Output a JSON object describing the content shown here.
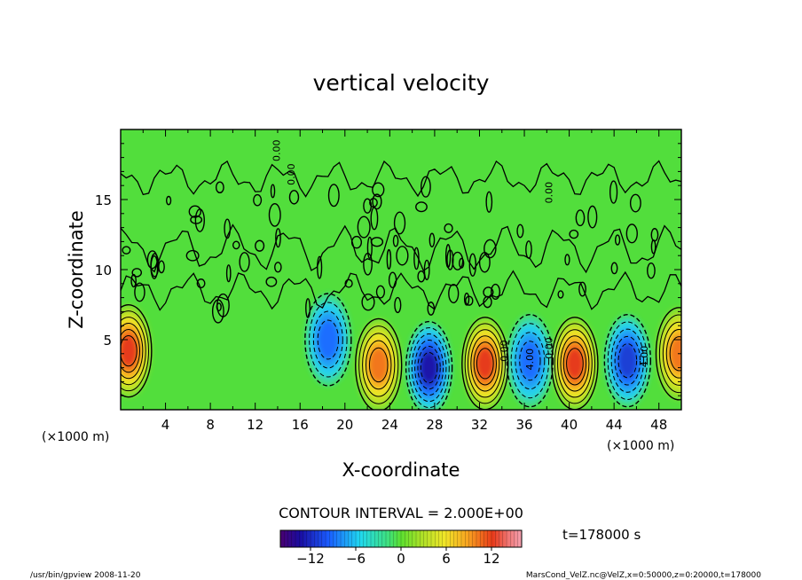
{
  "chart_data": {
    "type": "heatmap",
    "title": "vertical velocity",
    "xlabel": "X-coordinate",
    "ylabel": "Z-coordinate",
    "x_unit": "(×1000 m)",
    "xlim": [
      0,
      50
    ],
    "ylim": [
      0,
      20
    ],
    "x_ticks": [
      4,
      8,
      12,
      16,
      20,
      24,
      28,
      32,
      36,
      40,
      44,
      48
    ],
    "y_ticks": [
      5,
      10,
      15
    ],
    "contour_interval_text": "CONTOUR INTERVAL = 2.000E+00",
    "colorbar": {
      "range": [
        -16,
        16
      ],
      "ticks": [
        -12,
        -6,
        0,
        6,
        12
      ]
    },
    "contour_labels": [
      "0.00",
      "0.00",
      "0.00",
      "0.00",
      "0.00",
      "4.00",
      "4.00"
    ],
    "time_label": "t=178000  s",
    "extrema": [
      {
        "x": 0.7,
        "z": 4.2,
        "value": 12
      },
      {
        "x": 18.5,
        "z": 5.0,
        "value": -8
      },
      {
        "x": 23.0,
        "z": 3.2,
        "value": 10
      },
      {
        "x": 27.5,
        "z": 3.0,
        "value": -12
      },
      {
        "x": 32.5,
        "z": 3.3,
        "value": 12
      },
      {
        "x": 36.5,
        "z": 3.5,
        "value": -8
      },
      {
        "x": 40.5,
        "z": 3.3,
        "value": 12
      },
      {
        "x": 45.2,
        "z": 3.5,
        "value": -10
      },
      {
        "x": 49.8,
        "z": 4.0,
        "value": 10
      }
    ]
  },
  "footer": {
    "left": "/usr/bin/gpview  2008-11-20",
    "right": "MarsCond_VelZ.nc@VelZ,x=0:50000,z=0:20000,t=178000"
  }
}
